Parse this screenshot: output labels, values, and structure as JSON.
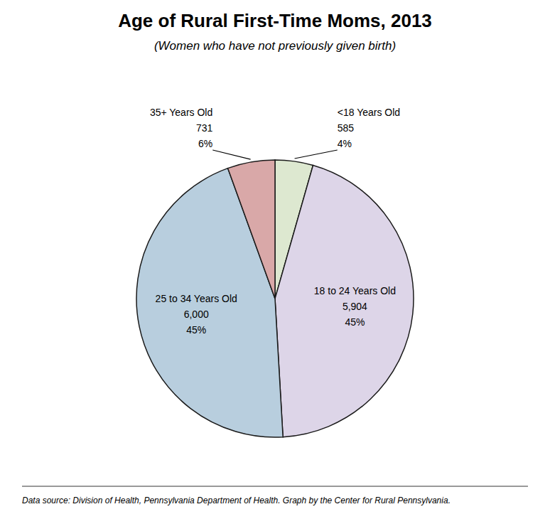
{
  "chart_data": {
    "type": "pie",
    "title": "Age of Rural First-Time Moms, 2013",
    "subtitle": "(Women who have not previously given birth)",
    "footnote": "Data source: Division of Health, Pennsylvania Department of Health. Graph by the Center for Rural Pennsylvania.",
    "categories": [
      "<18 Years Old",
      "18 to 24 Years Old",
      "25 to 34 Years Old",
      "35+ Years Old"
    ],
    "values": [
      585,
      5904,
      6000,
      731
    ],
    "value_labels": [
      "585",
      "5,904",
      "6,000",
      "731"
    ],
    "percentages": [
      4,
      45,
      45,
      6
    ],
    "percentage_labels": [
      "4%",
      "45%",
      "45%",
      "6%"
    ],
    "colors": [
      "#dde8d0",
      "#ddd5e8",
      "#b8cede",
      "#d9a8a8"
    ],
    "data_labels": true
  }
}
